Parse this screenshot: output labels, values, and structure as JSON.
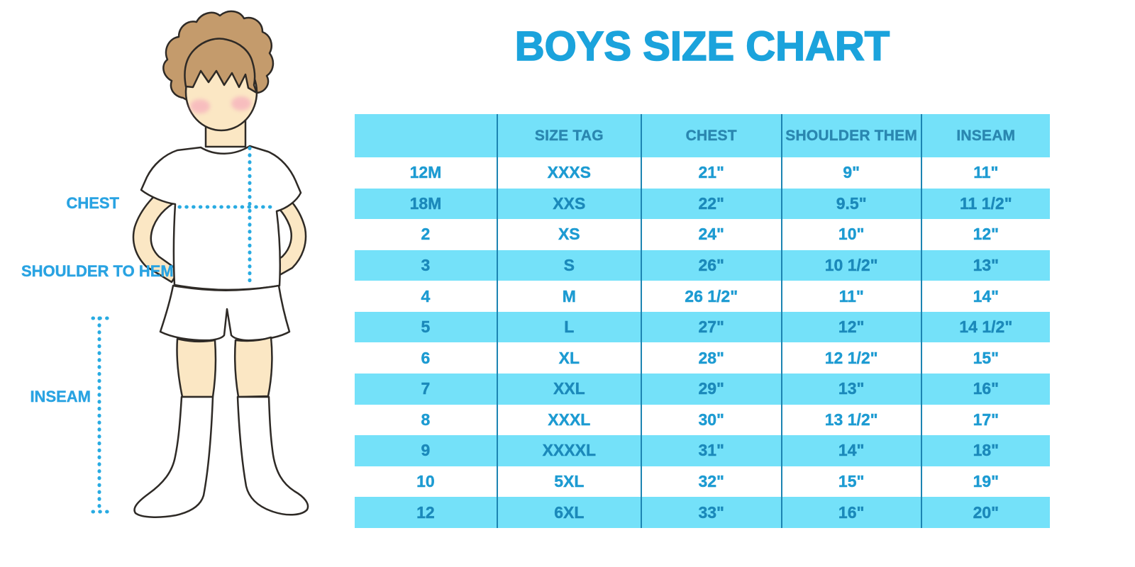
{
  "title": "BOYS SIZE CHART",
  "figure": {
    "labels": {
      "chest": "CHEST",
      "shoulder_to_hem": "SHOULDER TO HEM",
      "inseam": "INSEAM"
    }
  },
  "colors": {
    "title_blue": "#1BA3DC",
    "label_blue": "#29A3E2",
    "row_blue": "#74E1F9",
    "cell_text": "#1D9BD2",
    "cell_text_on_blue": "#1B89BA",
    "header_text": "#2A87B0",
    "divider": "#1C84B2",
    "dotted_line": "#29ABE2",
    "skin": "#FBE7C4",
    "hair": "#C49B6C",
    "outline": "#2E2A26",
    "cheek": "#F5A8BC"
  },
  "chart_data": {
    "type": "table",
    "title": "BOYS SIZE CHART",
    "columns": [
      "",
      "SIZE TAG",
      "CHEST",
      "SHOULDER THEM",
      "INSEAM"
    ],
    "rows": [
      [
        "12M",
        "XXXS",
        "21\"",
        "9\"",
        "11\""
      ],
      [
        "18M",
        "XXS",
        "22\"",
        "9.5\"",
        "11 1/2\""
      ],
      [
        "2",
        "XS",
        "24\"",
        "10\"",
        "12\""
      ],
      [
        "3",
        "S",
        "26\"",
        "10 1/2\"",
        "13\""
      ],
      [
        "4",
        "M",
        "26 1/2\"",
        "11\"",
        "14\""
      ],
      [
        "5",
        "L",
        "27\"",
        "12\"",
        "14 1/2\""
      ],
      [
        "6",
        "XL",
        "28\"",
        "12 1/2\"",
        "15\""
      ],
      [
        "7",
        "XXL",
        "29\"",
        "13\"",
        "16\""
      ],
      [
        "8",
        "XXXL",
        "30\"",
        "13 1/2\"",
        "17\""
      ],
      [
        "9",
        "XXXXL",
        "31\"",
        "14\"",
        "18\""
      ],
      [
        "10",
        "5XL",
        "32\"",
        "15\"",
        "19\""
      ],
      [
        "12",
        "6XL",
        "33\"",
        "16\"",
        "20\""
      ]
    ],
    "layout": {
      "striping": "header and even data rows light blue, odd data rows white",
      "grid": "vertical column dividers only, no horizontal lines"
    }
  }
}
